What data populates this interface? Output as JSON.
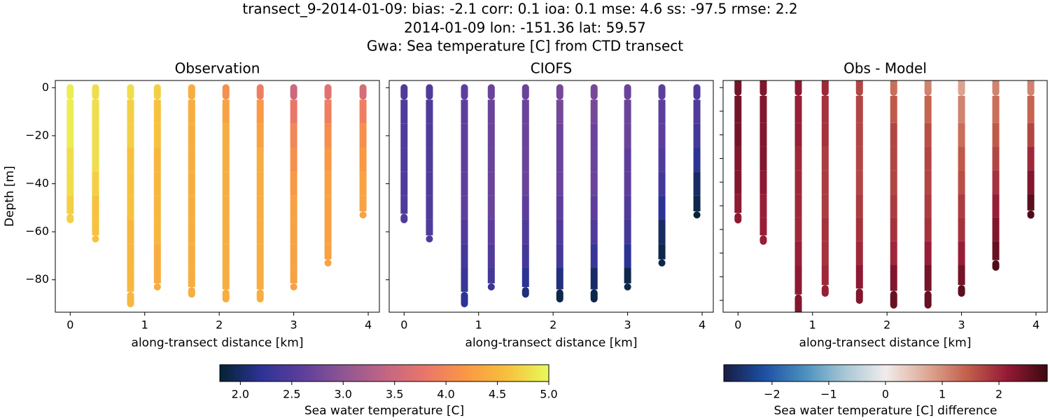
{
  "title": [
    "transect_9-2014-01-09: bias: -2.1  corr: 0.1  ioa: 0.1  mse: 4.6  ss: -97.5  rmse: 2.2",
    "2014-01-09 lon: -151.36 lat: 59.57",
    "Gwa: Sea temperature [C] from CTD transect"
  ],
  "chart_data": [
    {
      "type": "scatter",
      "title": "Observation",
      "xlabel": "along-transect distance [km]",
      "ylabel": "Depth [m]",
      "colorbar": 0,
      "xlim": [
        -0.2,
        4.15
      ],
      "ylim": [
        -93.5,
        3
      ],
      "xticks": [
        0,
        1,
        2,
        3,
        4
      ],
      "yticks": [
        {
          "value": 0,
          "label": "0"
        },
        {
          "value": -20,
          "label": "−20"
        },
        {
          "value": -40,
          "label": "−40"
        },
        {
          "value": -60,
          "label": "−60"
        },
        {
          "value": -80,
          "label": "−80"
        }
      ],
      "casts": [
        {
          "x": 0,
          "y": [
            0,
            -10,
            -20,
            -30,
            -40,
            -50,
            -55
          ],
          "values": [
            4.9,
            4.9,
            4.9,
            4.8,
            4.8,
            4.7,
            4.7
          ]
        },
        {
          "x": 0.34,
          "y": [
            0,
            -10,
            -20,
            -30,
            -40,
            -50,
            -60,
            -63
          ],
          "values": [
            4.8,
            4.8,
            4.8,
            4.8,
            4.7,
            4.6,
            4.6,
            4.6
          ]
        },
        {
          "x": 0.81,
          "y": [
            0,
            -10,
            -20,
            -30,
            -40,
            -50,
            -60,
            -70,
            -80,
            -90
          ],
          "values": [
            4.8,
            4.7,
            4.7,
            4.6,
            4.6,
            4.6,
            4.5,
            4.5,
            4.5,
            4.5
          ]
        },
        {
          "x": 1.17,
          "y": [
            0,
            -10,
            -20,
            -30,
            -40,
            -50,
            -60,
            -70,
            -80,
            -83
          ],
          "values": [
            4.7,
            4.6,
            4.6,
            4.5,
            4.5,
            4.5,
            4.5,
            4.4,
            4.4,
            4.4
          ]
        },
        {
          "x": 1.63,
          "y": [
            0,
            -10,
            -20,
            -30,
            -40,
            -50,
            -60,
            -70,
            -80,
            -86
          ],
          "values": [
            4.4,
            4.4,
            4.4,
            4.4,
            4.4,
            4.4,
            4.4,
            4.4,
            4.4,
            4.4
          ]
        },
        {
          "x": 2.09,
          "y": [
            0,
            -10,
            -20,
            -30,
            -40,
            -50,
            -60,
            -70,
            -80,
            -88
          ],
          "values": [
            4.1,
            4.3,
            4.4,
            4.4,
            4.4,
            4.4,
            4.4,
            4.4,
            4.4,
            4.4
          ]
        },
        {
          "x": 2.55,
          "y": [
            0,
            -10,
            -20,
            -30,
            -40,
            -50,
            -60,
            -70,
            -80,
            -88
          ],
          "values": [
            3.9,
            4.2,
            4.3,
            4.4,
            4.4,
            4.4,
            4.4,
            4.4,
            4.4,
            4.4
          ]
        },
        {
          "x": 3.0,
          "y": [
            0,
            -10,
            -20,
            -30,
            -40,
            -50,
            -60,
            -70,
            -80,
            -83
          ],
          "values": [
            3.5,
            3.8,
            4.0,
            4.1,
            4.2,
            4.3,
            4.3,
            4.3,
            4.3,
            4.3
          ]
        },
        {
          "x": 3.46,
          "y": [
            0,
            -10,
            -20,
            -30,
            -40,
            -50,
            -60,
            -70,
            -73
          ],
          "values": [
            3.7,
            3.9,
            4.1,
            4.2,
            4.3,
            4.3,
            4.3,
            4.3,
            4.3
          ]
        },
        {
          "x": 3.93,
          "y": [
            0,
            -10,
            -20,
            -30,
            -40,
            -50,
            -53
          ],
          "values": [
            3.6,
            3.9,
            4.1,
            4.2,
            4.3,
            4.3,
            4.3
          ]
        }
      ]
    },
    {
      "type": "scatter",
      "title": "CIOFS",
      "xlabel": "along-transect distance [km]",
      "colorbar": 0,
      "xlim": [
        -0.2,
        4.15
      ],
      "ylim": [
        -93.5,
        3
      ],
      "xticks": [
        0,
        1,
        2,
        3,
        4
      ],
      "yticks": [
        0,
        -20,
        -40,
        -60,
        -80
      ],
      "casts": [
        {
          "x": 0,
          "y": [
            0,
            -10,
            -20,
            -30,
            -40,
            -50,
            -55
          ],
          "values": [
            2.5,
            2.5,
            2.5,
            2.5,
            2.5,
            2.5,
            2.5
          ]
        },
        {
          "x": 0.34,
          "y": [
            0,
            -10,
            -20,
            -30,
            -40,
            -50,
            -60,
            -63
          ],
          "values": [
            2.5,
            2.5,
            2.5,
            2.5,
            2.5,
            2.5,
            2.5,
            2.5
          ]
        },
        {
          "x": 0.81,
          "y": [
            0,
            -10,
            -20,
            -30,
            -40,
            -50,
            -60,
            -70,
            -80,
            -90
          ],
          "values": [
            2.6,
            2.6,
            2.6,
            2.6,
            2.6,
            2.6,
            2.5,
            2.4,
            2.3,
            2.2
          ]
        },
        {
          "x": 1.17,
          "y": [
            0,
            -10,
            -20,
            -30,
            -40,
            -50,
            -60,
            -70,
            -80,
            -83
          ],
          "values": [
            2.7,
            2.7,
            2.7,
            2.7,
            2.7,
            2.7,
            2.6,
            2.5,
            2.4,
            2.3
          ]
        },
        {
          "x": 1.63,
          "y": [
            0,
            -10,
            -20,
            -30,
            -40,
            -50,
            -60,
            -70,
            -80,
            -86
          ],
          "values": [
            2.7,
            2.7,
            2.7,
            2.7,
            2.7,
            2.6,
            2.5,
            2.4,
            2.2,
            2.1
          ]
        },
        {
          "x": 2.09,
          "y": [
            0,
            -10,
            -20,
            -30,
            -40,
            -50,
            -60,
            -70,
            -80,
            -88
          ],
          "values": [
            2.8,
            2.8,
            2.7,
            2.7,
            2.7,
            2.6,
            2.5,
            2.4,
            2.1,
            1.9
          ]
        },
        {
          "x": 2.55,
          "y": [
            0,
            -10,
            -20,
            -30,
            -40,
            -50,
            -60,
            -70,
            -80,
            -88
          ],
          "values": [
            2.8,
            2.8,
            2.7,
            2.7,
            2.7,
            2.6,
            2.5,
            2.3,
            2.0,
            1.9
          ]
        },
        {
          "x": 3.0,
          "y": [
            0,
            -10,
            -20,
            -30,
            -40,
            -50,
            -60,
            -70,
            -80,
            -83
          ],
          "values": [
            2.7,
            2.7,
            2.7,
            2.6,
            2.6,
            2.5,
            2.4,
            2.2,
            1.9,
            1.9
          ]
        },
        {
          "x": 3.46,
          "y": [
            0,
            -10,
            -20,
            -30,
            -40,
            -50,
            -60,
            -70,
            -73
          ],
          "values": [
            2.6,
            2.6,
            2.6,
            2.5,
            2.4,
            2.2,
            2.0,
            1.9,
            1.9
          ]
        },
        {
          "x": 3.93,
          "y": [
            0,
            -10,
            -20,
            -30,
            -40,
            -50,
            -53
          ],
          "values": [
            2.5,
            2.5,
            2.4,
            2.2,
            2.0,
            1.9,
            1.8
          ]
        }
      ]
    },
    {
      "type": "scatter",
      "title": "Obs - Model",
      "xlabel": "along-transect distance [km]",
      "colorbar": 1,
      "xlim": [
        -0.2,
        4.15
      ],
      "ylim": [
        -95,
        3
      ],
      "xticks": [
        0,
        1,
        2,
        3,
        4
      ],
      "yticks": [
        0,
        -10,
        -20,
        -30,
        -40,
        -50,
        -60,
        -70,
        -80,
        -90
      ],
      "ytick_labels": false,
      "casts": [
        {
          "x": 0,
          "y": [
            3,
            -10,
            -20,
            -30,
            -40,
            -50,
            -56
          ],
          "values": [
            2.4,
            2.4,
            2.4,
            2.3,
            2.3,
            2.2,
            2.2
          ]
        },
        {
          "x": 0.34,
          "y": [
            3,
            -10,
            -20,
            -30,
            -40,
            -50,
            -60,
            -65
          ],
          "values": [
            2.3,
            2.3,
            2.3,
            2.3,
            2.2,
            2.1,
            2.1,
            2.1
          ]
        },
        {
          "x": 0.81,
          "y": [
            3,
            -10,
            -20,
            -30,
            -40,
            -50,
            -60,
            -70,
            -80,
            -95
          ],
          "values": [
            2.2,
            2.1,
            2.1,
            2.0,
            2.0,
            2.0,
            2.0,
            2.1,
            2.2,
            2.3
          ]
        },
        {
          "x": 1.17,
          "y": [
            3,
            -10,
            -20,
            -30,
            -40,
            -50,
            -60,
            -70,
            -80,
            -87
          ],
          "values": [
            2.0,
            1.9,
            1.9,
            1.8,
            1.8,
            1.8,
            1.9,
            1.9,
            2.0,
            2.1
          ]
        },
        {
          "x": 1.63,
          "y": [
            3,
            -10,
            -20,
            -30,
            -40,
            -50,
            -60,
            -70,
            -80,
            -90
          ],
          "values": [
            1.7,
            1.7,
            1.7,
            1.7,
            1.7,
            1.8,
            1.9,
            2.0,
            2.2,
            2.3
          ]
        },
        {
          "x": 2.09,
          "y": [
            3,
            -10,
            -20,
            -30,
            -40,
            -50,
            -60,
            -70,
            -80,
            -92
          ],
          "values": [
            1.3,
            1.5,
            1.7,
            1.7,
            1.7,
            1.8,
            1.9,
            2.0,
            2.3,
            2.5
          ]
        },
        {
          "x": 2.55,
          "y": [
            3,
            -10,
            -20,
            -30,
            -40,
            -50,
            -60,
            -70,
            -80,
            -92
          ],
          "values": [
            1.1,
            1.4,
            1.6,
            1.7,
            1.7,
            1.8,
            1.9,
            2.1,
            2.4,
            2.5
          ]
        },
        {
          "x": 3.0,
          "y": [
            3,
            -10,
            -20,
            -30,
            -40,
            -50,
            -60,
            -70,
            -80,
            -87
          ],
          "values": [
            0.8,
            1.1,
            1.3,
            1.5,
            1.6,
            1.8,
            1.9,
            2.1,
            2.4,
            2.6
          ]
        },
        {
          "x": 3.46,
          "y": [
            3,
            -10,
            -20,
            -30,
            -40,
            -50,
            -60,
            -70,
            -76
          ],
          "values": [
            1.1,
            1.3,
            1.5,
            1.7,
            1.9,
            2.1,
            2.3,
            2.5,
            2.7
          ]
        },
        {
          "x": 3.93,
          "y": [
            3,
            -10,
            -20,
            -30,
            -40,
            -50,
            -54
          ],
          "values": [
            1.1,
            1.4,
            1.7,
            2.0,
            2.3,
            2.6,
            2.7
          ]
        }
      ]
    }
  ],
  "colorbars": [
    {
      "label": "Sea water temperature [C]",
      "lim": [
        1.8,
        5.0
      ],
      "ticks": [
        {
          "value": 2,
          "label": "2.0"
        },
        2.5,
        {
          "value": 3,
          "label": "3.0"
        },
        3.5,
        {
          "value": 4,
          "label": "4.0"
        },
        4.5,
        {
          "value": 5,
          "label": "5.0"
        }
      ],
      "colormap": [
        "#042333",
        "#2c3395",
        "#5d3e9c",
        "#8e5592",
        "#c26585",
        "#ea7669",
        "#f99845",
        "#f6c13d",
        "#e8fa5b"
      ]
    },
    {
      "label": "Sea water temperature [C] difference",
      "lim": [
        -2.85,
        2.85
      ],
      "ticks": [
        {
          "value": -2,
          "label": "−2"
        },
        {
          "value": -1,
          "label": "−1"
        },
        0,
        1,
        2
      ],
      "colormap": [
        "#181c43",
        "#1d4fa4",
        "#4a90be",
        "#a8c7d6",
        "#f1ecec",
        "#dfab98",
        "#c4614c",
        "#951a35",
        "#3c0911"
      ]
    }
  ]
}
